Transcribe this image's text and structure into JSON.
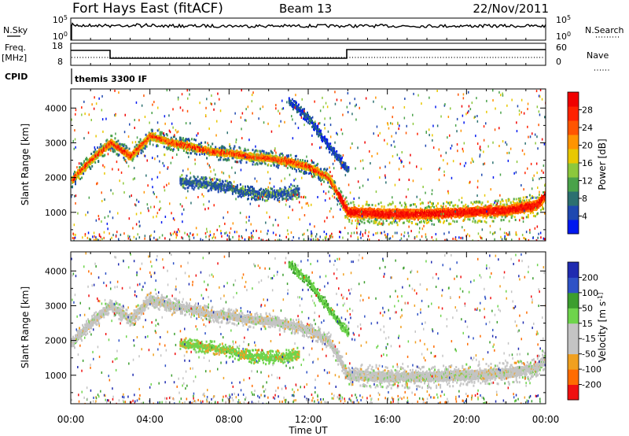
{
  "header": {
    "station": "Fort Hays East (fitACF)",
    "beam": "Beam 13",
    "date": "22/Nov/2011"
  },
  "top_panels": {
    "nsky_label": "N.Sky",
    "nsky_ticks": [
      "10^5",
      "10^0"
    ],
    "nsearch_label": "N.Search",
    "nsearch_ticks": [
      "10^5",
      "10^0"
    ],
    "freq_label": "Freq.",
    "freq_unit": "[MHz]",
    "freq_ticks": [
      "18",
      "8"
    ],
    "nave_label": "Nave",
    "nave_ticks": [
      "60",
      "0"
    ],
    "cpid_label": "CPID",
    "cpid_value": "themis 3300 IF"
  },
  "chart_data": [
    {
      "type": "heatmap",
      "title": "",
      "xlabel": "",
      "ylabel": "Slant Range [km]",
      "x_ticks": [
        "00:00",
        "04:00",
        "08:00",
        "12:00",
        "16:00",
        "20:00",
        "00:00"
      ],
      "xlim": [
        0,
        24
      ],
      "y_ticks": [
        "1000",
        "2000",
        "3000",
        "4000"
      ],
      "ylim": [
        180,
        4550
      ],
      "colorbar": {
        "label": "Power [dB]",
        "ticks": [
          "4",
          "8",
          "12",
          "16",
          "20",
          "24",
          "28"
        ],
        "colors": [
          "#0018f0",
          "#1e48b0",
          "#2c7070",
          "#4aa24a",
          "#8cc83c",
          "#e8c800",
          "#ff9400",
          "#ff5500",
          "#ff2200",
          "#f00000"
        ]
      },
      "features": [
        {
          "name": "main trace",
          "x": [
            0.0,
            1.0,
            2.0,
            3.0,
            4.0,
            5.0,
            6.0,
            7.0,
            8.0,
            9.0,
            10.0,
            11.0,
            12.0,
            13.0,
            14.0,
            16.0,
            18.0,
            20.0,
            22.0,
            23.5,
            24.0
          ],
          "y": [
            1900,
            2500,
            3000,
            2600,
            3200,
            3000,
            2900,
            2750,
            2700,
            2600,
            2550,
            2450,
            2300,
            2000,
            1000,
            950,
            950,
            1000,
            1050,
            1200,
            1500
          ],
          "power_db": 24
        },
        {
          "name": "sub trace",
          "x": [
            5.5,
            6.0,
            7.0,
            8.0,
            9.0,
            10.0,
            11.0,
            11.5
          ],
          "y": [
            1900,
            1850,
            1800,
            1700,
            1550,
            1500,
            1550,
            1600
          ],
          "power_db": 8
        },
        {
          "name": "high-range scatter",
          "x": [
            11.0,
            12.0,
            13.0,
            14.0
          ],
          "y": [
            4200,
            3700,
            2900,
            2200
          ],
          "power_db": 6
        }
      ]
    },
    {
      "type": "heatmap",
      "title": "",
      "xlabel": "Time UT",
      "ylabel": "Slant Range [km]",
      "x_ticks": [
        "00:00",
        "04:00",
        "08:00",
        "12:00",
        "16:00",
        "20:00",
        "00:00"
      ],
      "xlim": [
        0,
        24
      ],
      "y_ticks": [
        "1000",
        "2000",
        "3000",
        "4000"
      ],
      "ylim": [
        180,
        4550
      ],
      "colorbar": {
        "label": "Velocity [m s^-1]",
        "ticks": [
          "200",
          "100",
          "50",
          "15",
          "-15",
          "-50",
          "-100",
          "-200"
        ],
        "colors": [
          "#1f2bb0",
          "#2e52c6",
          "#3c9e2e",
          "#6ed44c",
          "#c4c4c4",
          "#c4c4c4",
          "#f0a020",
          "#ff6c00",
          "#f01010"
        ]
      },
      "features": [
        {
          "name": "ground scatter band",
          "x": [
            0.0,
            1.0,
            2.0,
            3.0,
            4.0,
            5.0,
            6.0,
            7.0,
            8.0,
            9.0,
            10.0,
            11.0,
            12.0,
            13.0,
            14.0,
            16.0,
            18.0,
            20.0,
            22.0,
            23.5,
            24.0
          ],
          "y": [
            1900,
            2500,
            3000,
            2600,
            3200,
            3000,
            2900,
            2750,
            2700,
            2600,
            2550,
            2450,
            2300,
            2000,
            1000,
            950,
            950,
            1000,
            1050,
            1200,
            1500
          ],
          "velocity": 0
        },
        {
          "name": "green sub trace",
          "x": [
            5.5,
            6.0,
            7.0,
            8.0,
            9.0,
            10.0,
            11.0,
            11.5
          ],
          "y": [
            1900,
            1850,
            1800,
            1700,
            1550,
            1500,
            1550,
            1600
          ],
          "velocity": 60
        },
        {
          "name": "descending streak",
          "x": [
            11.0,
            12.0,
            13.0,
            14.0
          ],
          "y": [
            4200,
            3700,
            2900,
            2200
          ],
          "velocity": 60
        }
      ]
    }
  ]
}
